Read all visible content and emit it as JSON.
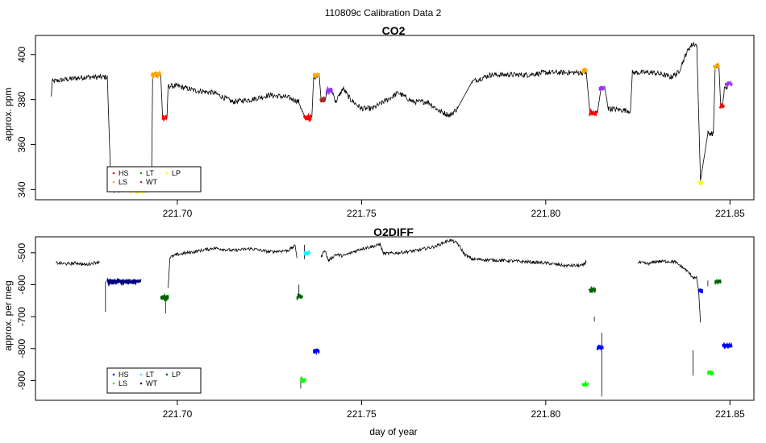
{
  "figure": {
    "title": "110809c   Calibration Data 2"
  },
  "chart_data": [
    {
      "type": "line",
      "title": "CO2",
      "xlabel": "",
      "ylabel": "approx. ppm",
      "xlim": [
        221.6615,
        221.8565
      ],
      "ylim": [
        335.5,
        408.5
      ],
      "xticks": [
        221.7,
        221.75,
        221.8,
        221.85
      ],
      "xtick_labels": [
        "221.70",
        "221.75",
        "221.80",
        "221.85"
      ],
      "yticks": [
        340,
        360,
        380,
        400
      ],
      "ytick_labels": [
        "340",
        "360",
        "380",
        "400"
      ],
      "legend": {
        "placement": "bottom-left",
        "entries": [
          {
            "label": "HS",
            "color": "#ff0000"
          },
          {
            "label": "LS",
            "color": "#ffa500"
          },
          {
            "label": "LT",
            "color": "#00aa00"
          },
          {
            "label": "WT",
            "color": "#a52a2a"
          },
          {
            "label": "LP",
            "color": "#ffff00"
          }
        ]
      },
      "trace": [
        [
          221.6658,
          381
        ],
        [
          221.666,
          388
        ],
        [
          221.67,
          389
        ],
        [
          221.675,
          390
        ],
        [
          221.679,
          390
        ],
        [
          221.681,
          390
        ],
        [
          221.682,
          340
        ],
        [
          221.693,
          340
        ],
        [
          221.6933,
          391
        ],
        [
          221.6955,
          391
        ],
        [
          221.696,
          372
        ],
        [
          221.6972,
          372
        ],
        [
          221.6975,
          386
        ],
        [
          221.7,
          386
        ],
        [
          221.705,
          384
        ],
        [
          221.71,
          383
        ],
        [
          221.715,
          379
        ],
        [
          221.72,
          380
        ],
        [
          221.725,
          382
        ],
        [
          221.73,
          381
        ],
        [
          221.733,
          379
        ],
        [
          221.7345,
          372
        ],
        [
          221.7365,
          372
        ],
        [
          221.737,
          390
        ],
        [
          221.7385,
          391
        ],
        [
          221.739,
          380
        ],
        [
          221.74,
          380
        ],
        [
          221.741,
          384
        ],
        [
          221.742,
          384
        ],
        [
          221.743,
          379
        ],
        [
          221.745,
          385
        ],
        [
          221.747,
          380
        ],
        [
          221.75,
          376
        ],
        [
          221.753,
          376
        ],
        [
          221.756,
          379
        ],
        [
          221.76,
          383
        ],
        [
          221.764,
          379
        ],
        [
          221.768,
          379
        ],
        [
          221.771,
          375
        ],
        [
          221.774,
          373
        ],
        [
          221.776,
          376
        ],
        [
          221.78,
          388
        ],
        [
          221.785,
          391
        ],
        [
          221.79,
          391
        ],
        [
          221.795,
          391
        ],
        [
          221.8,
          392
        ],
        [
          221.805,
          392
        ],
        [
          221.811,
          392
        ],
        [
          221.812,
          374
        ],
        [
          221.814,
          374
        ],
        [
          221.815,
          385
        ],
        [
          221.816,
          385
        ],
        [
          221.817,
          376
        ],
        [
          221.823,
          375
        ],
        [
          221.8235,
          392
        ],
        [
          221.829,
          392
        ],
        [
          221.832,
          391
        ],
        [
          221.834,
          390
        ],
        [
          221.836,
          392
        ],
        [
          221.838,
          400
        ],
        [
          221.839,
          403
        ],
        [
          221.84,
          405
        ],
        [
          221.841,
          404
        ],
        [
          221.842,
          344
        ],
        [
          221.844,
          365
        ],
        [
          221.8455,
          365
        ],
        [
          221.846,
          395
        ],
        [
          221.847,
          395
        ],
        [
          221.8475,
          377
        ],
        [
          221.848,
          377
        ],
        [
          221.8485,
          385
        ],
        [
          221.8495,
          386
        ]
      ],
      "calibrations": [
        {
          "tank": "LS",
          "x": [
            221.693,
            221.6955
          ],
          "y": 391
        },
        {
          "tank": "HS",
          "x": [
            221.696,
            221.6972
          ],
          "y": 372
        },
        {
          "tank": "HS",
          "x": [
            221.7343,
            221.7363
          ],
          "y": 372
        },
        {
          "tank": "LS",
          "x": [
            221.737,
            221.7385
          ],
          "y": 391
        },
        {
          "tank": "WT",
          "x": [
            221.7388,
            221.74
          ],
          "y": 380
        },
        {
          "tank": "purple",
          "x": [
            221.7405,
            221.742
          ],
          "y": 384
        },
        {
          "tank": "LS",
          "x": [
            221.81,
            221.8112
          ],
          "y": 393
        },
        {
          "tank": "HS",
          "x": [
            221.8118,
            221.8138
          ],
          "y": 374
        },
        {
          "tank": "purple",
          "x": [
            221.8146,
            221.816
          ],
          "y": 385
        },
        {
          "tank": "LP",
          "x": [
            221.8415,
            221.8425
          ],
          "y": 343
        },
        {
          "tank": "LS",
          "x": [
            221.8455,
            221.847
          ],
          "y": 395
        },
        {
          "tank": "HS",
          "x": [
            221.8472,
            221.8484
          ],
          "y": 377
        },
        {
          "tank": "purple",
          "x": [
            221.8488,
            221.8505
          ],
          "y": 387
        },
        {
          "tank": "LP",
          "x": [
            221.685,
            221.691
          ],
          "y": 339.8
        }
      ]
    },
    {
      "type": "line",
      "title": "O2DIFF",
      "xlabel": "day of year",
      "ylabel": "approx. per meg",
      "xlim": [
        221.6615,
        221.8565
      ],
      "ylim": [
        -962,
        -450
      ],
      "xticks": [
        221.7,
        221.75,
        221.8,
        221.85
      ],
      "xtick_labels": [
        "221.70",
        "221.75",
        "221.80",
        "221.85"
      ],
      "yticks": [
        -500,
        -600,
        -700,
        -800,
        -900
      ],
      "ytick_labels": [
        "-500",
        "-600",
        "-700",
        "-800",
        "-900"
      ],
      "legend": {
        "placement": "bottom-left",
        "entries": [
          {
            "label": "HS",
            "color": "#0000ff"
          },
          {
            "label": "LS",
            "color": "#00ff00"
          },
          {
            "label": "LT",
            "color": "#00ffff"
          },
          {
            "label": "WT",
            "color": "#000080"
          },
          {
            "label": "LP",
            "color": "#006400"
          }
        ]
      },
      "trace": [
        [
          221.667,
          -532
        ],
        [
          221.67,
          -535
        ],
        [
          221.673,
          -532
        ],
        [
          221.675,
          -538
        ],
        [
          221.679,
          -527
        ]
      ],
      "trace2": [
        [
          221.6975,
          -610
        ],
        [
          221.698,
          -515
        ],
        [
          221.7,
          -505
        ],
        [
          221.705,
          -496
        ],
        [
          221.71,
          -485
        ],
        [
          221.715,
          -493
        ],
        [
          221.72,
          -487
        ],
        [
          221.725,
          -497
        ],
        [
          221.73,
          -493
        ],
        [
          221.732,
          -478
        ],
        [
          221.7325,
          -516
        ]
      ],
      "trace3": [
        [
          221.739,
          -515
        ],
        [
          221.74,
          -490
        ],
        [
          221.741,
          -525
        ],
        [
          221.743,
          -505
        ],
        [
          221.745,
          -510
        ],
        [
          221.75,
          -487
        ],
        [
          221.754,
          -478
        ],
        [
          221.755,
          -472
        ],
        [
          221.756,
          -503
        ],
        [
          221.76,
          -500
        ],
        [
          221.765,
          -493
        ],
        [
          221.77,
          -480
        ],
        [
          221.774,
          -460
        ],
        [
          221.776,
          -470
        ],
        [
          221.778,
          -505
        ],
        [
          221.78,
          -520
        ],
        [
          221.79,
          -525
        ],
        [
          221.8,
          -532
        ],
        [
          221.805,
          -540
        ],
        [
          221.81,
          -540
        ],
        [
          221.811,
          -527
        ]
      ],
      "trace4": [
        [
          221.825,
          -530
        ],
        [
          221.828,
          -535
        ],
        [
          221.83,
          -527
        ],
        [
          221.833,
          -527
        ],
        [
          221.835,
          -528
        ],
        [
          221.838,
          -553
        ],
        [
          221.84,
          -577
        ],
        [
          221.841,
          -580
        ],
        [
          221.8415,
          -620
        ],
        [
          221.842,
          -718
        ]
      ],
      "spikes": [
        [
          221.6805,
          -590,
          -685
        ],
        [
          221.6968,
          -635,
          -690
        ],
        [
          221.733,
          -600,
          -640
        ],
        [
          221.7335,
          -890,
          -925
        ],
        [
          221.7345,
          -475,
          -520
        ],
        [
          221.8132,
          -700,
          -715
        ],
        [
          221.8152,
          -750,
          -950
        ],
        [
          221.84,
          -805,
          -885
        ],
        [
          221.846,
          -590,
          -600
        ],
        [
          221.844,
          -587,
          -605
        ]
      ],
      "calibrations": [
        {
          "tank": "WT",
          "x": [
            221.681,
            221.69
          ],
          "y": -590
        },
        {
          "tank": "LP",
          "x": [
            221.6955,
            221.6975
          ],
          "y": -640
        },
        {
          "tank": "LP",
          "x": [
            221.7325,
            221.734
          ],
          "y": -635
        },
        {
          "tank": "LS",
          "x": [
            221.7335,
            221.7348
          ],
          "y": -900
        },
        {
          "tank": "LT",
          "x": [
            221.7345,
            221.736
          ],
          "y": -500
        },
        {
          "tank": "HS",
          "x": [
            221.737,
            221.7385
          ],
          "y": -807
        },
        {
          "tank": "LS",
          "x": [
            221.81,
            221.8115
          ],
          "y": -912
        },
        {
          "tank": "LP",
          "x": [
            221.8118,
            221.8135
          ],
          "y": -618
        },
        {
          "tank": "HS",
          "x": [
            221.814,
            221.8155
          ],
          "y": -798
        },
        {
          "tank": "HS",
          "x": [
            221.8415,
            221.8425
          ],
          "y": -620
        },
        {
          "tank": "LS",
          "x": [
            221.844,
            221.8455
          ],
          "y": -875
        },
        {
          "tank": "LP",
          "x": [
            221.846,
            221.8475
          ],
          "y": -590
        },
        {
          "tank": "HS",
          "x": [
            221.848,
            221.8505
          ],
          "y": -792
        }
      ]
    }
  ],
  "colors": {
    "HS1": "#ff0000",
    "LS1": "#ffa500",
    "LT1": "#00aa00",
    "WT1": "#a52a2a",
    "LP1": "#ffff00",
    "purple": "#9933ff",
    "HS2": "#0000ff",
    "LS2": "#00ff00",
    "LT2": "#00ffff",
    "WT2": "#000080",
    "LP2": "#006400"
  }
}
